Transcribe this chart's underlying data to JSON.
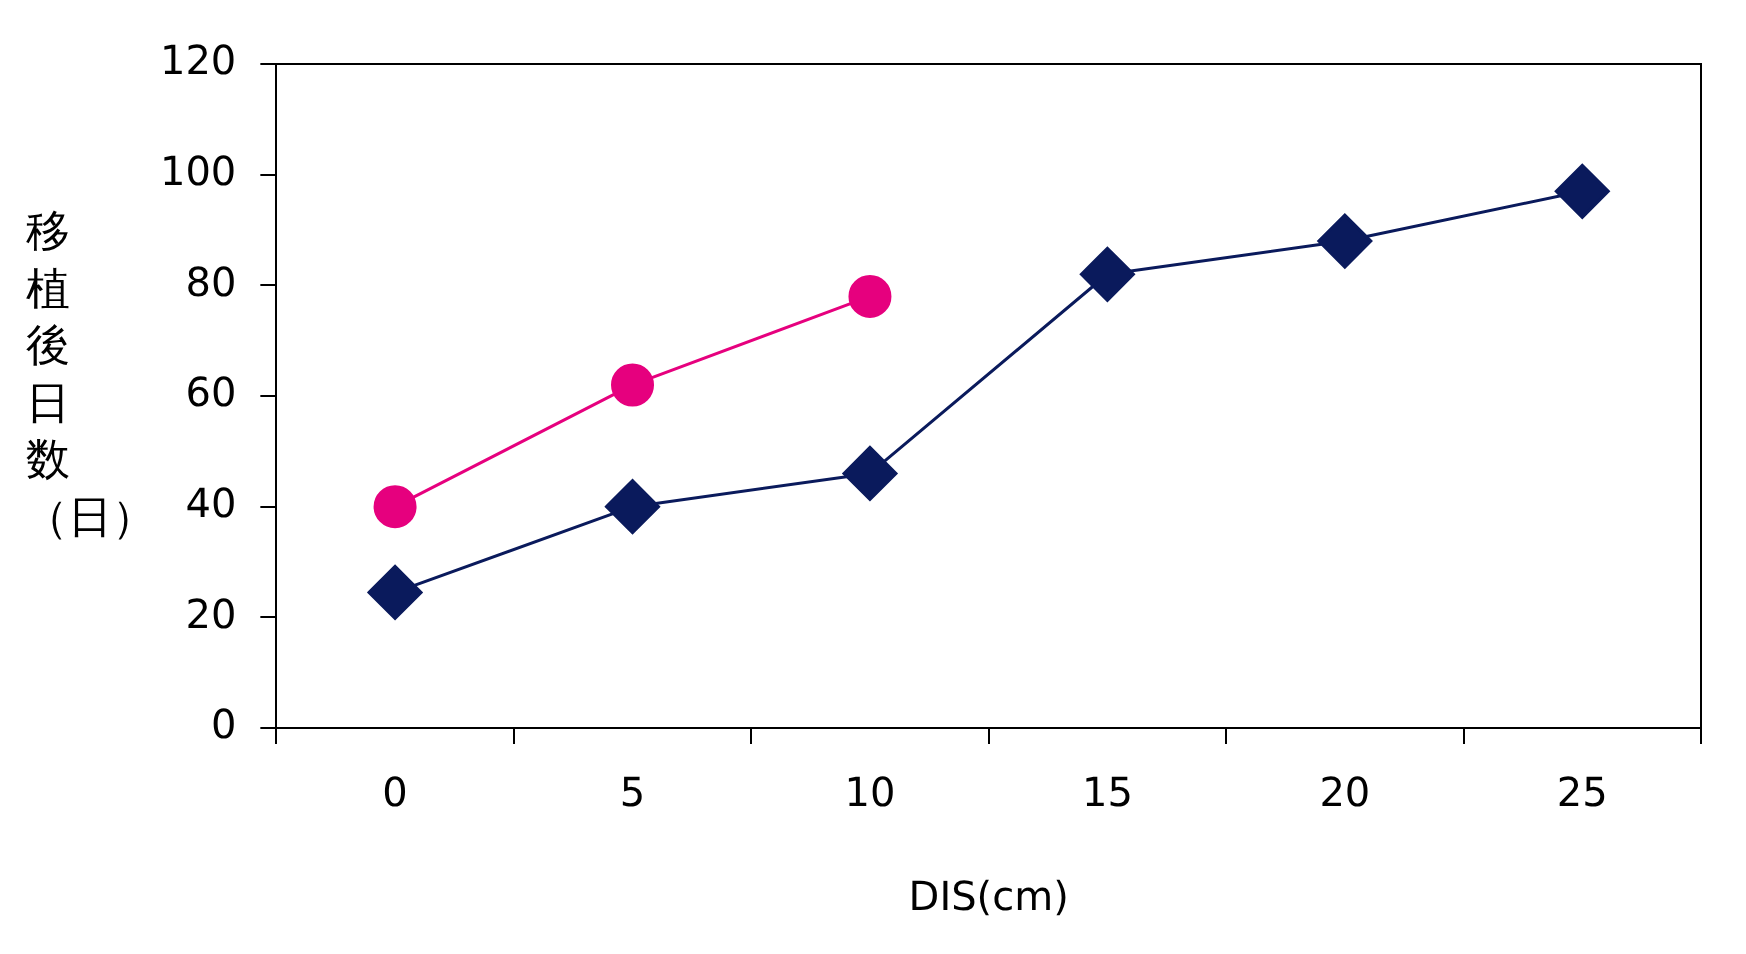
{
  "chart_data": {
    "type": "line",
    "xlabel": "DIS(cm)",
    "ylabel": "移植後日数（日）",
    "categories": [
      "0",
      "5",
      "10",
      "15",
      "20",
      "25"
    ],
    "series": [
      {
        "color": "#0a1a5c",
        "marker": "diamond",
        "values": [
          24.5,
          40,
          46,
          82,
          88,
          97
        ]
      },
      {
        "color": "#e6007e",
        "marker": "circle",
        "values": [
          40,
          62,
          78,
          null,
          null,
          null
        ]
      }
    ],
    "ylim": [
      0,
      120
    ],
    "yticks": [
      0,
      20,
      40,
      60,
      80,
      100,
      120
    ],
    "grid": false,
    "legend": false
  }
}
